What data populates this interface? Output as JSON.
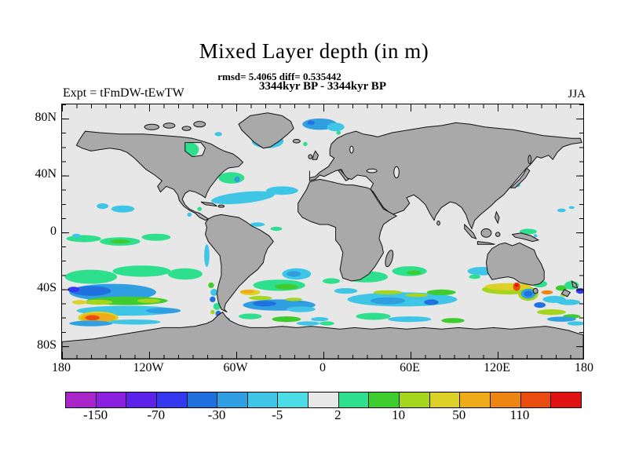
{
  "title": "Mixed Layer depth (in m)",
  "subtitle": {
    "stats": "rmsd= 5.4065 diff= 0.535442",
    "period": "3344kyr BP - 3344kyr BP"
  },
  "header": {
    "experiment": "Expt = tFmDW-tEwTW",
    "season": "JJA"
  },
  "axes": {
    "lat": [
      "80N",
      "40N",
      "0",
      "40S",
      "80S"
    ],
    "lon": [
      "180",
      "120W",
      "60W",
      "0",
      "60E",
      "120E",
      "180"
    ]
  },
  "colorbar": {
    "labels": [
      "-150",
      "-70",
      "-30",
      "-5",
      "2",
      "10",
      "50",
      "110"
    ],
    "cells": [
      {
        "color": "#a623d6",
        "dots": "#d03030"
      },
      {
        "color": "#8b1fe0"
      },
      {
        "color": "#5c22ea"
      },
      {
        "color": "#3438ee"
      },
      {
        "color": "#2070e0"
      },
      {
        "color": "#2f9fe2"
      },
      {
        "color": "#3fc6e6"
      },
      {
        "color": "#4cdce6"
      },
      {
        "color": "#e8e8e8"
      },
      {
        "color": "#2ee08e"
      },
      {
        "color": "#3ecc2e"
      },
      {
        "color": "#a6d51e"
      },
      {
        "color": "#ddd026"
      },
      {
        "color": "#eeac1a"
      },
      {
        "color": "#ee8412"
      },
      {
        "color": "#ea4c10"
      },
      {
        "color": "#e01212"
      }
    ]
  },
  "map": {
    "land_color": "#a9a9a9",
    "ocean_color": "#e7e7e7",
    "coastline_color": "#111111"
  },
  "chart_data": {
    "type": "heatmap",
    "subtype": "filled-contour difference map on equirectangular world projection",
    "title": "Mixed Layer depth (in m)",
    "stats": "rmsd= 5.4065 diff= 0.535442",
    "comparison": "3344kyr BP - 3344kyr BP",
    "experiment": "Expt = tFmDW-tEwTW",
    "season": "JJA",
    "x_axis": {
      "tick_labels": [
        "180",
        "120W",
        "60W",
        "0",
        "60E",
        "120E",
        "180"
      ],
      "range_deg_lon": [
        -180,
        180
      ],
      "minor_tick_step_deg": 10
    },
    "y_axis": {
      "tick_labels": [
        "80N",
        "40N",
        "0",
        "40S",
        "80S"
      ],
      "range_deg_lat": [
        -90,
        90
      ],
      "minor_tick_step_deg": 10
    },
    "colorbar_tick_values": [
      -150,
      -70,
      -30,
      -5,
      2,
      10,
      50,
      110
    ],
    "colorbar_cell_count": 17,
    "legend_position": "bottom",
    "grid": false,
    "notes": "Near-zero (gray) over most oceans; land masses gray; negative (blue/cyan) and positive (green/yellow/orange/red) anomalies concentrated in Southern Ocean 30S-65S, equatorial Pacific, North Atlantic, Hudson Bay and south of Australia; strong positive patch near 55-65S 170W-130W and near 135E 40S."
  }
}
